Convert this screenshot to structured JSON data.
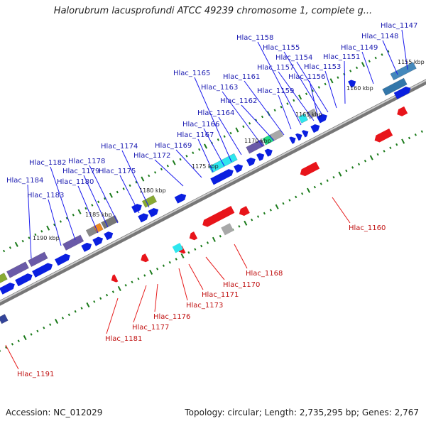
{
  "title": "Halorubrum lacusprofundi ATCC 49239 chromosome 1, complete g...",
  "footer": {
    "accession": "Accession: NC_012029",
    "summary": "Topology: circular; Length: 2,735,295 bp; Genes: 2,767"
  },
  "colors": {
    "forward": "#0a1fe0",
    "reverse": "#e8141a",
    "backbone": "#8c8c8c",
    "tick": "#1a7a1a",
    "cyan": "#2ee6ee",
    "gray": "#a8a8a8",
    "purple": "#6a5aa8"
  },
  "scale_labels": [
    "1155 kbp",
    "1160 kbp",
    "1165 kbp",
    "1170 kbp",
    "1175 kbp",
    "1180 kbp",
    "1185 kbp",
    "1190 kbp"
  ],
  "upper_labels": [
    "Hlac_1147",
    "Hlac_1148",
    "Hlac_1149",
    "Hlac_1151",
    "Hlac_1153",
    "Hlac_1154",
    "Hlac_1155",
    "Hlac_1156",
    "Hlac_1157",
    "Hlac_1158",
    "Hlac_1159",
    "Hlac_1161",
    "Hlac_1162",
    "Hlac_1163",
    "Hlac_1164",
    "Hlac_1165",
    "Hlac_1166",
    "Hlac_1167",
    "Hlac_1169",
    "Hlac_1172",
    "Hlac_1174",
    "Hlac_1175",
    "Hlac_1178",
    "Hlac_1179",
    "Hlac_1180",
    "Hlac_1182",
    "Hlac_1183",
    "Hlac_1184"
  ],
  "lower_labels": [
    "Hlac_1160",
    "Hlac_1168",
    "Hlac_1170",
    "Hlac_1171",
    "Hlac_1173",
    "Hlac_1176",
    "Hlac_1177",
    "Hlac_1181",
    "Hlac_1191"
  ]
}
